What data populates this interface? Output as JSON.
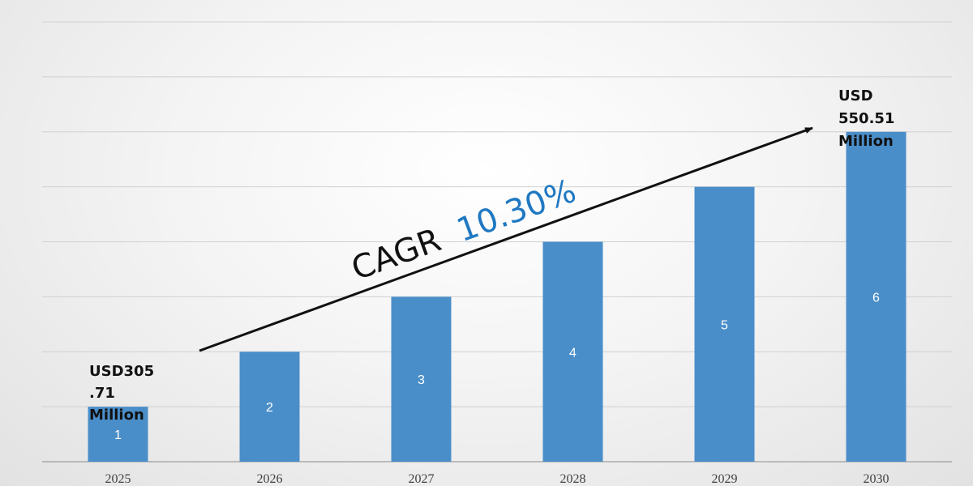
{
  "chart_data": {
    "type": "bar",
    "categories": [
      "2025",
      "2026",
      "2027",
      "2028",
      "2029",
      "2030"
    ],
    "values": [
      1,
      2,
      3,
      4,
      5,
      6
    ],
    "data_labels": [
      "1",
      "2",
      "3",
      "4",
      "5",
      "6"
    ],
    "ylim": [
      0,
      8
    ],
    "grid": true,
    "legend": "none",
    "colors": {
      "bar": "#4a8ec9",
      "cagr_value": "#1f78c1",
      "text": "#111111"
    },
    "annotations": {
      "start_label": [
        "USD305",
        ".71",
        "Million"
      ],
      "end_label": [
        "USD",
        "550.51",
        "Million"
      ],
      "cagr_prefix": "CAGR",
      "cagr_value": "10.30%"
    }
  }
}
